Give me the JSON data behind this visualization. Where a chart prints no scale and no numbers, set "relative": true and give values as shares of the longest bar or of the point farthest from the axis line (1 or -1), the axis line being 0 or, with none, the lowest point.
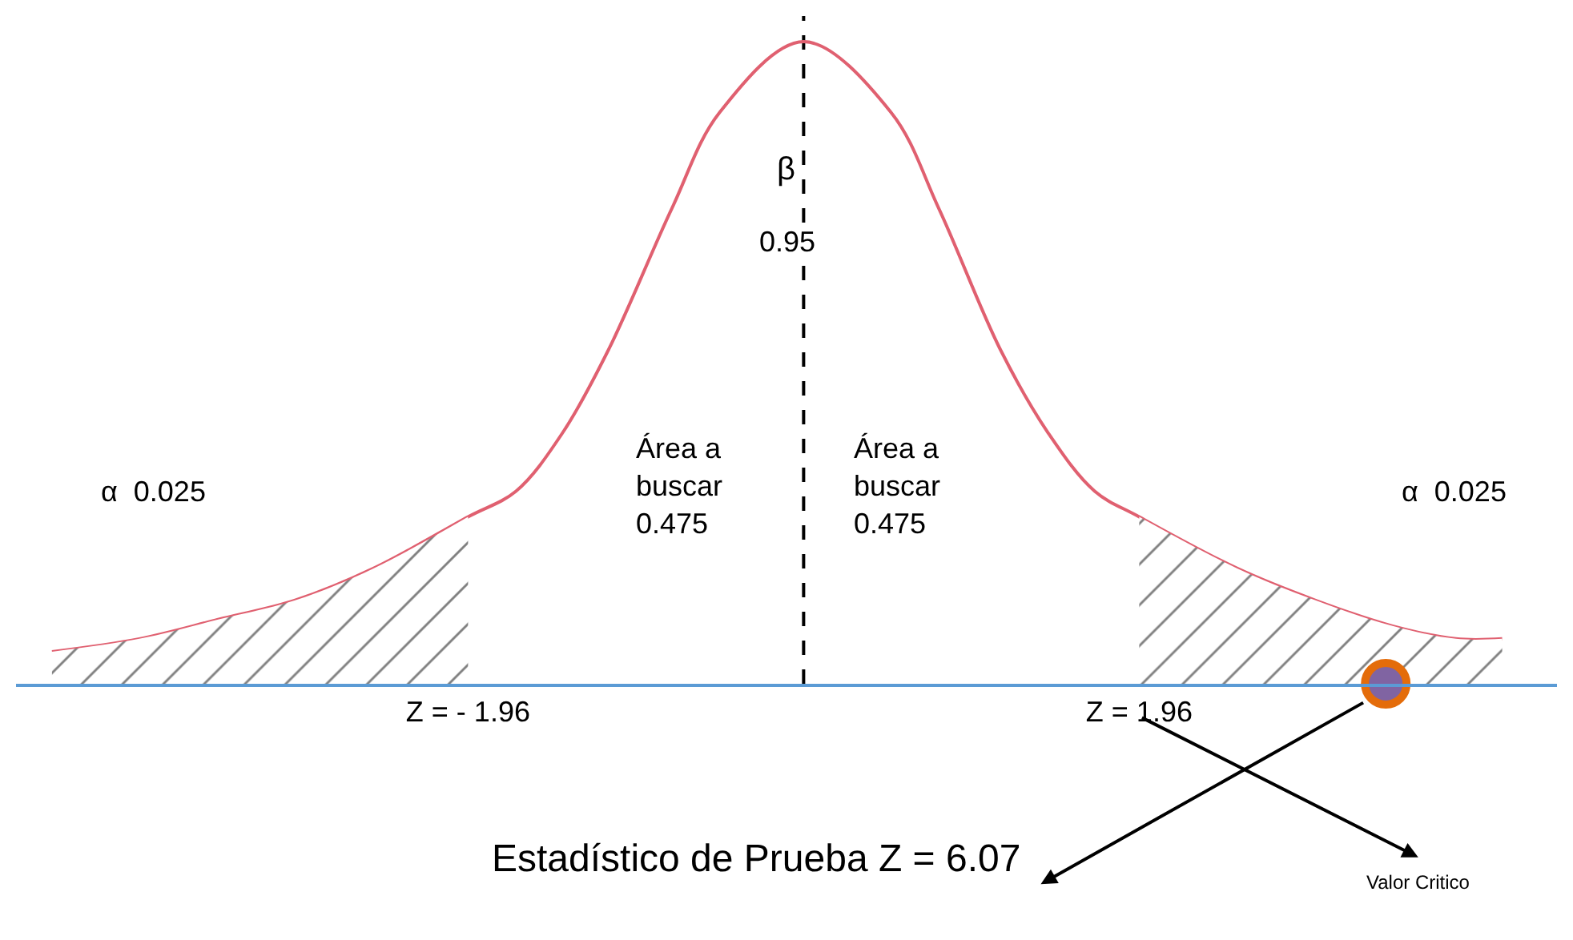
{
  "chart_data": {
    "type": "line",
    "relative": true,
    "xlim": [
      -4.6,
      4.4
    ],
    "xticks": [
      {
        "value": -1.96,
        "label": "Z = - 1.96"
      },
      {
        "value": 1.96,
        "label": "Z = 1.96"
      }
    ],
    "marker": "none",
    "line_style": "solid",
    "series": [
      {
        "color": "#e06070",
        "x": [
          -4.39,
          -3.88,
          -3.42,
          -2.97,
          -2.51,
          -1.96,
          -1.68,
          -1.41,
          -1.14,
          -0.77,
          -0.49,
          0,
          0.51,
          0.79,
          1.15,
          1.43,
          1.7,
          1.96,
          2.53,
          2.99,
          3.44,
          3.81,
          4.08
        ],
        "values": [
          0.05,
          0.07,
          0.1,
          0.13,
          0.18,
          0.26,
          0.3,
          0.39,
          0.52,
          0.74,
          0.89,
          1,
          0.89,
          0.74,
          0.52,
          0.39,
          0.3,
          0.26,
          0.18,
          0.13,
          0.09,
          0.07,
          0.07
        ]
      },
      {
        "type": "area",
        "color": "#000000",
        "x": [
          -4.39,
          -3.88,
          -3.42,
          -2.97,
          -2.51,
          -1.96
        ],
        "values": [
          0.05,
          0.07,
          0.1,
          0.13,
          0.18,
          0.26
        ]
      },
      {
        "type": "area",
        "color": "#000000",
        "x": [
          1.96,
          2.53,
          2.99,
          3.44,
          3.81,
          4.08
        ],
        "values": [
          0.26,
          0.18,
          0.13,
          0.09,
          0.07,
          0.07
        ]
      },
      {
        "type": "scatter",
        "color": "#e46c0a",
        "marker": "circle",
        "x": [
          3.4
        ],
        "values": [
          0
        ]
      }
    ],
    "ref_lines": [
      {
        "axis": "x",
        "value": 0,
        "color": "#000000",
        "line_style": "dashed"
      }
    ],
    "annotations": [
      "β",
      "0.95",
      "Área a\nbuscar\n0.475",
      "Área a\nbuscar\n0.475",
      "α  0.025",
      "α  0.025",
      "Estadístico de Prueba Z = 6.07",
      "Valor Critico"
    ]
  }
}
